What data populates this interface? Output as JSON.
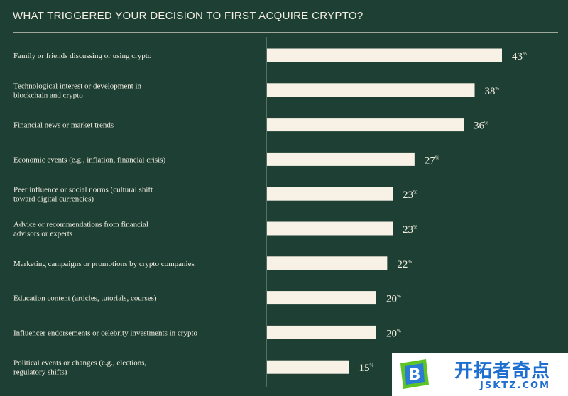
{
  "title": "WHAT TRIGGERED YOUR DECISION TO FIRST ACQUIRE CRYPTO?",
  "colors": {
    "background": "#1e4034",
    "bar": "#f8f1e6",
    "text": "#f3ede2"
  },
  "chart_data": {
    "type": "bar",
    "orientation": "horizontal",
    "title": "WHAT TRIGGERED YOUR DECISION TO FIRST ACQUIRE CRYPTO?",
    "unit": "%",
    "categories": [
      "Family or friends discussing or using crypto",
      "Technological interest or development in blockchain and crypto",
      "Financial news or market trends",
      "Economic events (e.g., inflation, financial crisis)",
      "Peer influence or social norms (cultural shift toward digital currencies)",
      "Advice or recommendations from financial advisors or experts",
      "Marketing campaigns or promotions by crypto companies",
      "Education content (articles, tutorials, courses)",
      "Influencer endorsements or celebrity investments in crypto",
      "Political events or changes (e.g., elections, regulatory shifts)"
    ],
    "label_lines": [
      [
        "Family or friends discussing or using crypto"
      ],
      [
        "Technological interest or development in",
        "blockchain and crypto"
      ],
      [
        "Financial news or market trends"
      ],
      [
        "Economic events (e.g., inflation, financial crisis)"
      ],
      [
        "Peer influence or social norms (cultural shift",
        "toward digital currencies)"
      ],
      [
        "Advice or recommendations from financial",
        "advisors or experts"
      ],
      [
        "Marketing campaigns or promotions by crypto companies"
      ],
      [
        "Education content (articles, tutorials, courses)"
      ],
      [
        "Influencer endorsements or celebrity investments in crypto"
      ],
      [
        "Political events or changes (e.g., elections,",
        "regulatory shifts)"
      ]
    ],
    "values": [
      43,
      38,
      36,
      27,
      23,
      23,
      22,
      20,
      20,
      15
    ],
    "xlim": [
      0,
      100
    ],
    "grid": false,
    "legend": "none"
  },
  "watermark": {
    "logo_letter": "B",
    "text": "开拓者奇点",
    "url": "JSKTZ.COM"
  }
}
